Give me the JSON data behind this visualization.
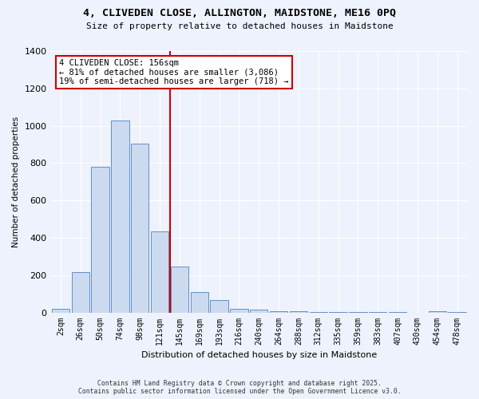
{
  "title_line1": "4, CLIVEDEN CLOSE, ALLINGTON, MAIDSTONE, ME16 0PQ",
  "title_line2": "Size of property relative to detached houses in Maidstone",
  "xlabel": "Distribution of detached houses by size in Maidstone",
  "ylabel": "Number of detached properties",
  "bar_labels": [
    "2sqm",
    "26sqm",
    "50sqm",
    "74sqm",
    "98sqm",
    "121sqm",
    "145sqm",
    "169sqm",
    "193sqm",
    "216sqm",
    "240sqm",
    "264sqm",
    "288sqm",
    "312sqm",
    "335sqm",
    "359sqm",
    "383sqm",
    "407sqm",
    "430sqm",
    "454sqm",
    "478sqm"
  ],
  "bar_values": [
    20,
    215,
    780,
    1030,
    905,
    435,
    245,
    110,
    65,
    20,
    15,
    5,
    5,
    3,
    2,
    2,
    2,
    1,
    0,
    5,
    2
  ],
  "bar_color": "#ccdaf0",
  "bar_edge_color": "#6090c8",
  "vline_x": 6,
  "vline_color": "#cc0000",
  "annotation_title": "4 CLIVEDEN CLOSE: 156sqm",
  "annotation_line2": "← 81% of detached houses are smaller (3,086)",
  "annotation_line3": "19% of semi-detached houses are larger (718) →",
  "annotation_box_color": "#ffffff",
  "annotation_box_edge": "#cc0000",
  "ylim": [
    0,
    1400
  ],
  "yticks": [
    0,
    200,
    400,
    600,
    800,
    1000,
    1200,
    1400
  ],
  "background_color": "#eef2fc",
  "plot_bg_color": "#eef2fc",
  "grid_color": "#ffffff",
  "footer_line1": "Contains HM Land Registry data © Crown copyright and database right 2025.",
  "footer_line2": "Contains public sector information licensed under the Open Government Licence v3.0."
}
